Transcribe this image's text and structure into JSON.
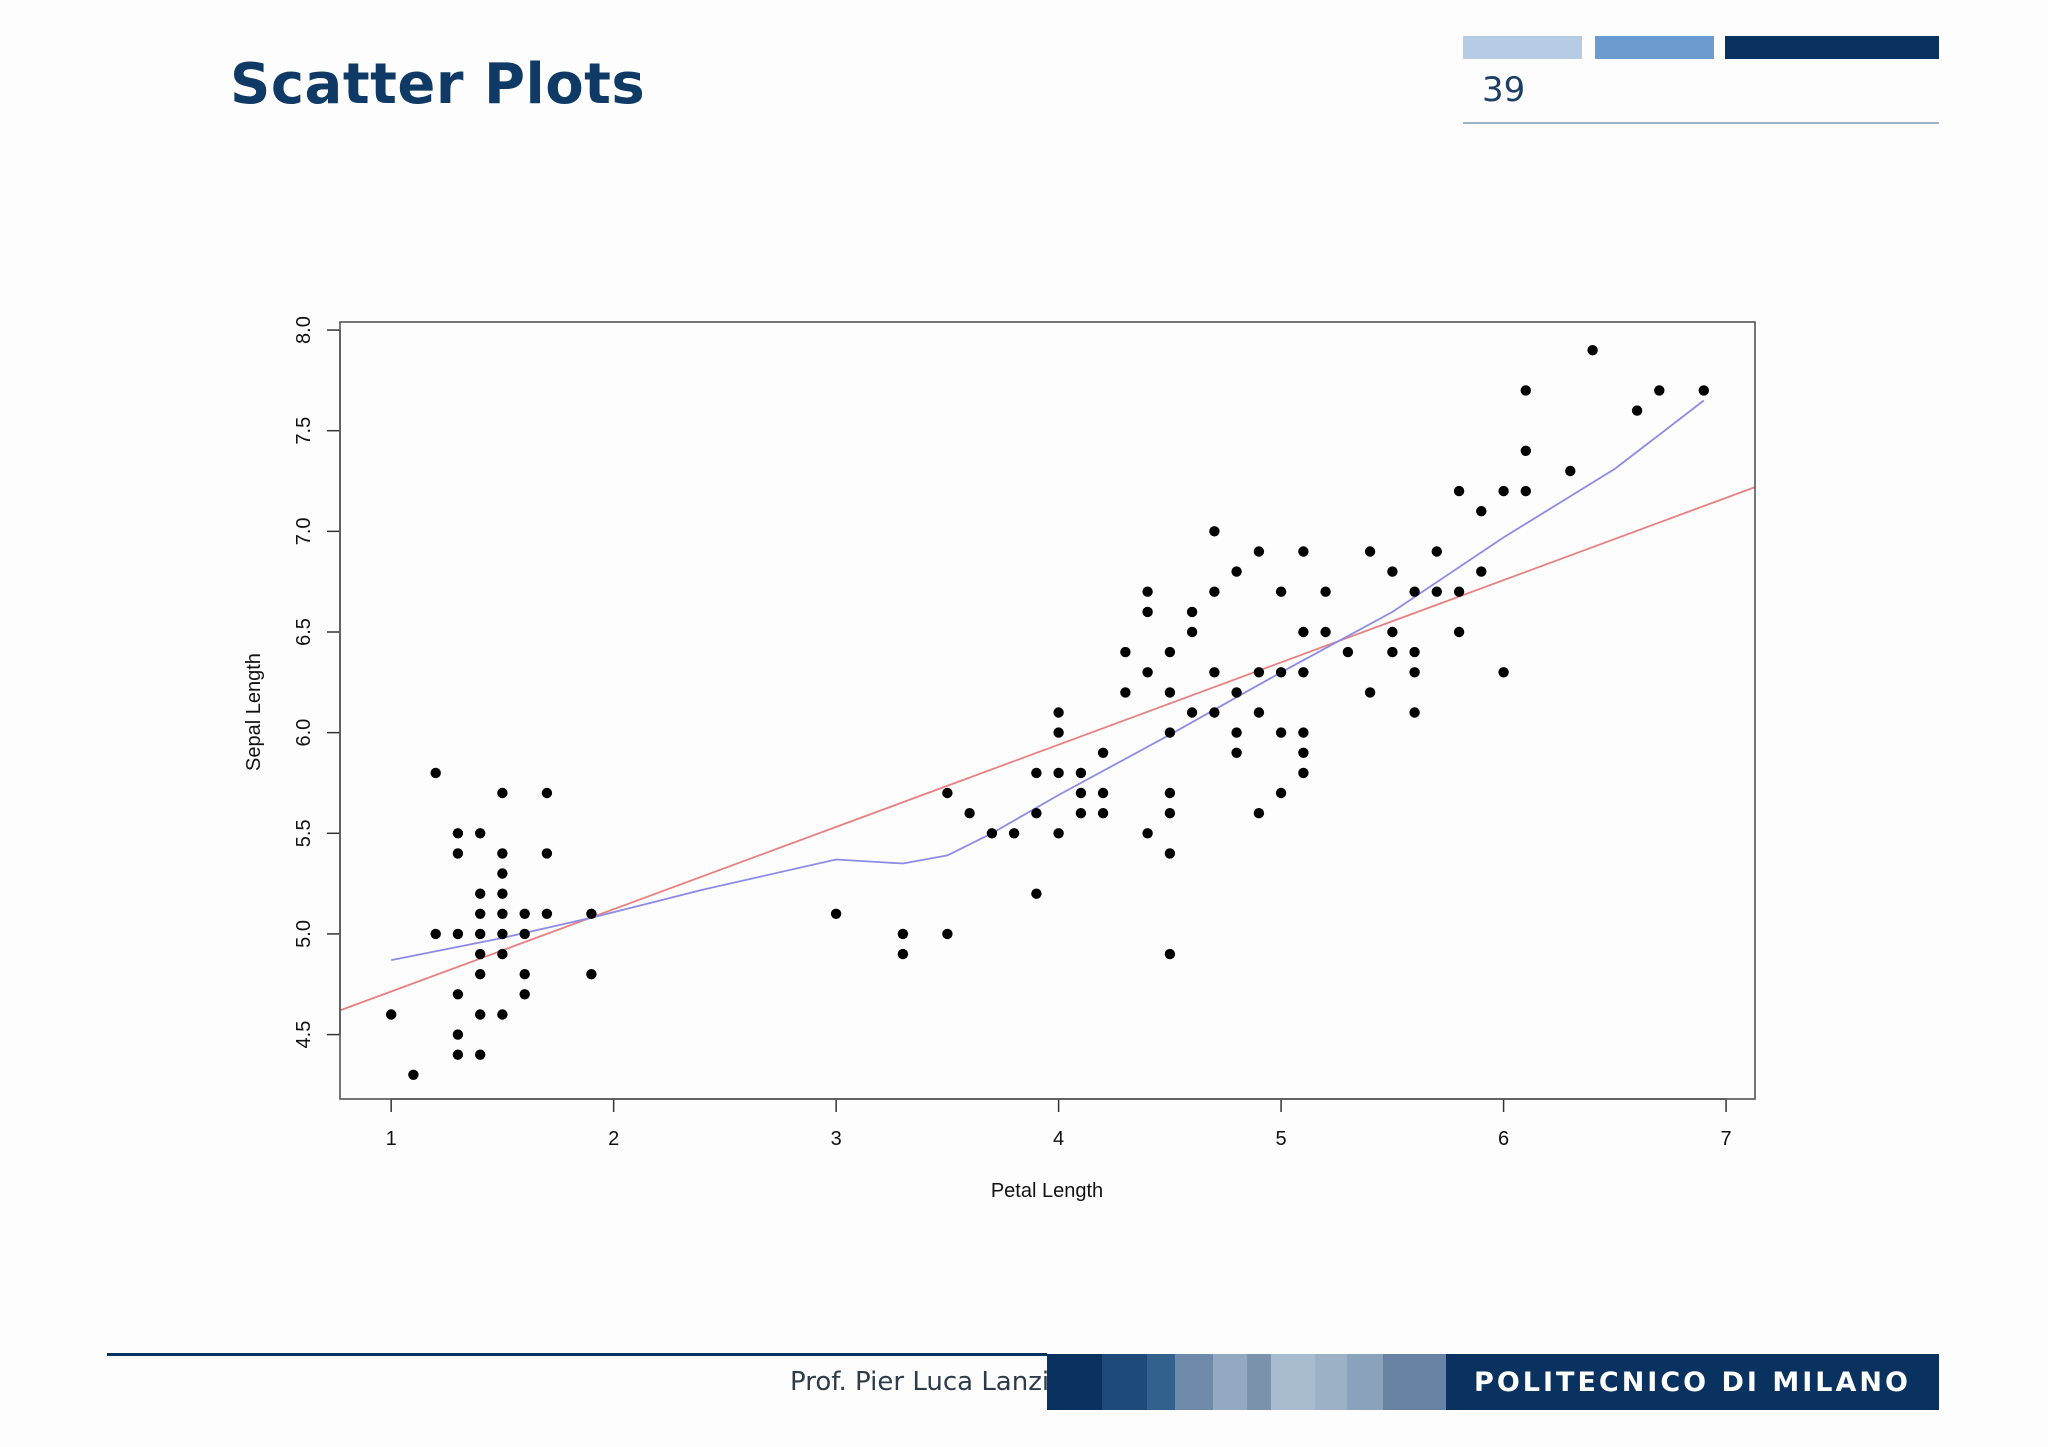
{
  "slide": {
    "title": "Scatter Plots",
    "page_number": "39",
    "author": "Prof. Pier Luca Lanzi",
    "institution": "POLITECNICO DI MILANO"
  },
  "colors": {
    "title": "#0f3a66",
    "brand_dark": "#0a3260",
    "header_bar_light": "#b5cce4",
    "header_bar_mid": "#6b9bcf",
    "header_bar_dark": "#0a3260",
    "footer_strip": [
      "#0a3260",
      "#1d4a78",
      "#33618e",
      "#6e8aa8",
      "#93a9c2",
      "#7b92ad",
      "#a9bbcf",
      "#9cb0c6",
      "#8aa2bc",
      "#6782a3"
    ],
    "regression_line": "#e88080",
    "lowess_line": "#8c8ce6",
    "points": "#000000"
  },
  "chart_data": {
    "type": "scatter",
    "xlabel": "Petal Length",
    "ylabel": "Sepal Length",
    "xlim": [
      0.77,
      7.13
    ],
    "ylim": [
      4.18,
      8.04
    ],
    "x_ticks": [
      1,
      2,
      3,
      4,
      5,
      6,
      7
    ],
    "y_ticks": [
      4.5,
      5.0,
      5.5,
      6.0,
      6.5,
      7.0,
      7.5,
      8.0
    ],
    "x_tick_labels": [
      "1",
      "2",
      "3",
      "4",
      "5",
      "6",
      "7"
    ],
    "y_tick_labels": [
      "4.5",
      "5.0",
      "5.5",
      "6.0",
      "6.5",
      "7.0",
      "7.5",
      "8.0"
    ],
    "grid": false,
    "points": [
      [
        1.0,
        4.6
      ],
      [
        1.1,
        4.3
      ],
      [
        1.2,
        5.8
      ],
      [
        1.2,
        5.0
      ],
      [
        1.3,
        5.5
      ],
      [
        1.3,
        5.4
      ],
      [
        1.3,
        5.0
      ],
      [
        1.3,
        4.7
      ],
      [
        1.3,
        4.5
      ],
      [
        1.3,
        4.4
      ],
      [
        1.4,
        5.5
      ],
      [
        1.4,
        5.2
      ],
      [
        1.4,
        5.1
      ],
      [
        1.4,
        5.0
      ],
      [
        1.4,
        4.9
      ],
      [
        1.4,
        4.8
      ],
      [
        1.4,
        4.6
      ],
      [
        1.4,
        4.4
      ],
      [
        1.5,
        5.7
      ],
      [
        1.5,
        5.4
      ],
      [
        1.5,
        5.3
      ],
      [
        1.5,
        5.2
      ],
      [
        1.5,
        5.1
      ],
      [
        1.5,
        5.0
      ],
      [
        1.5,
        4.9
      ],
      [
        1.5,
        4.6
      ],
      [
        1.6,
        5.1
      ],
      [
        1.6,
        5.0
      ],
      [
        1.6,
        4.8
      ],
      [
        1.6,
        4.7
      ],
      [
        1.7,
        5.7
      ],
      [
        1.7,
        5.4
      ],
      [
        1.7,
        5.1
      ],
      [
        1.9,
        5.1
      ],
      [
        1.9,
        4.8
      ],
      [
        3.0,
        5.1
      ],
      [
        3.3,
        5.0
      ],
      [
        3.3,
        4.9
      ],
      [
        3.5,
        5.7
      ],
      [
        3.5,
        5.0
      ],
      [
        3.6,
        5.6
      ],
      [
        3.7,
        5.5
      ],
      [
        3.8,
        5.5
      ],
      [
        3.9,
        5.8
      ],
      [
        3.9,
        5.6
      ],
      [
        3.9,
        5.2
      ],
      [
        4.0,
        6.1
      ],
      [
        4.0,
        6.0
      ],
      [
        4.0,
        5.8
      ],
      [
        4.0,
        5.5
      ],
      [
        4.1,
        5.8
      ],
      [
        4.1,
        5.7
      ],
      [
        4.1,
        5.6
      ],
      [
        4.2,
        5.9
      ],
      [
        4.2,
        5.7
      ],
      [
        4.2,
        5.6
      ],
      [
        4.3,
        6.4
      ],
      [
        4.3,
        6.2
      ],
      [
        4.4,
        6.7
      ],
      [
        4.4,
        6.6
      ],
      [
        4.4,
        6.3
      ],
      [
        4.4,
        5.5
      ],
      [
        4.5,
        6.4
      ],
      [
        4.5,
        6.2
      ],
      [
        4.5,
        6.0
      ],
      [
        4.5,
        5.7
      ],
      [
        4.5,
        5.6
      ],
      [
        4.5,
        5.4
      ],
      [
        4.5,
        4.9
      ],
      [
        4.6,
        6.6
      ],
      [
        4.6,
        6.5
      ],
      [
        4.6,
        6.1
      ],
      [
        4.7,
        7.0
      ],
      [
        4.7,
        6.7
      ],
      [
        4.7,
        6.3
      ],
      [
        4.7,
        6.1
      ],
      [
        4.8,
        6.8
      ],
      [
        4.8,
        6.2
      ],
      [
        4.8,
        6.0
      ],
      [
        4.8,
        5.9
      ],
      [
        4.9,
        6.9
      ],
      [
        4.9,
        6.3
      ],
      [
        4.9,
        6.1
      ],
      [
        4.9,
        5.6
      ],
      [
        5.0,
        6.7
      ],
      [
        5.0,
        6.3
      ],
      [
        5.0,
        6.0
      ],
      [
        5.0,
        5.7
      ],
      [
        5.1,
        6.9
      ],
      [
        5.1,
        6.5
      ],
      [
        5.1,
        6.3
      ],
      [
        5.1,
        6.0
      ],
      [
        5.1,
        5.9
      ],
      [
        5.1,
        5.8
      ],
      [
        5.2,
        6.7
      ],
      [
        5.2,
        6.5
      ],
      [
        5.3,
        6.4
      ],
      [
        5.4,
        6.9
      ],
      [
        5.4,
        6.2
      ],
      [
        5.5,
        6.8
      ],
      [
        5.5,
        6.5
      ],
      [
        5.5,
        6.4
      ],
      [
        5.6,
        6.7
      ],
      [
        5.6,
        6.4
      ],
      [
        5.6,
        6.3
      ],
      [
        5.6,
        6.1
      ],
      [
        5.7,
        6.9
      ],
      [
        5.7,
        6.7
      ],
      [
        5.8,
        7.2
      ],
      [
        5.8,
        6.7
      ],
      [
        5.8,
        6.5
      ],
      [
        5.9,
        7.1
      ],
      [
        5.9,
        6.8
      ],
      [
        6.0,
        7.2
      ],
      [
        6.0,
        6.3
      ],
      [
        6.1,
        7.7
      ],
      [
        6.1,
        7.4
      ],
      [
        6.1,
        7.2
      ],
      [
        6.3,
        7.3
      ],
      [
        6.4,
        7.9
      ],
      [
        6.6,
        7.6
      ],
      [
        6.7,
        7.7
      ],
      [
        6.9,
        7.7
      ]
    ],
    "series": [
      {
        "type": "line",
        "values": [
          [
            0.77,
            4.62
          ],
          [
            7.13,
            7.22
          ]
        ]
      },
      {
        "type": "line",
        "values": [
          [
            1.0,
            4.87
          ],
          [
            1.5,
            4.98
          ],
          [
            1.9,
            5.08
          ],
          [
            2.4,
            5.22
          ],
          [
            3.0,
            5.37
          ],
          [
            3.3,
            5.35
          ],
          [
            3.5,
            5.39
          ],
          [
            3.7,
            5.5
          ],
          [
            4.0,
            5.69
          ],
          [
            4.5,
            5.99
          ],
          [
            5.0,
            6.3
          ],
          [
            5.5,
            6.6
          ],
          [
            6.0,
            6.97
          ],
          [
            6.5,
            7.31
          ],
          [
            6.9,
            7.65
          ]
        ]
      }
    ]
  }
}
